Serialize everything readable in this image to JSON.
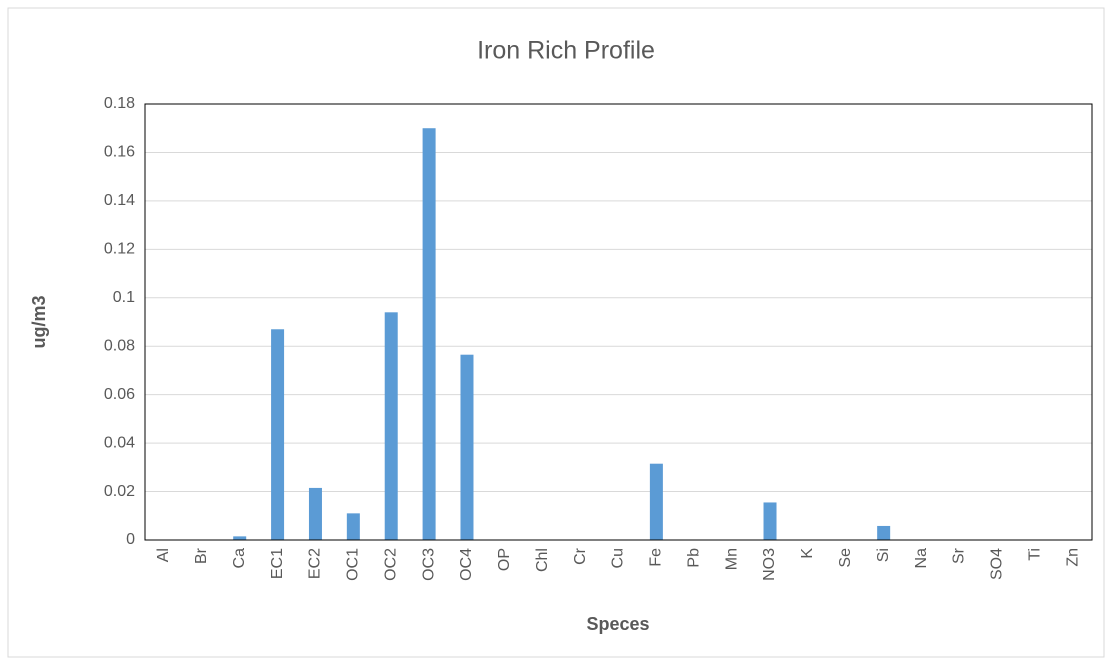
{
  "chart_data": {
    "type": "bar",
    "title": "Iron Rich Profile",
    "x_label": "Speces",
    "y_label": "ug/m3",
    "categories": [
      "Al",
      "Br",
      "Ca",
      "EC1",
      "EC2",
      "OC1",
      "OC2",
      "OC3",
      "OC4",
      "OP",
      "Chl",
      "Cr",
      "Cu",
      "Fe",
      "Pb",
      "Mn",
      "NO3",
      "K",
      "Se",
      "Si",
      "Na",
      "Sr",
      "SO4",
      "Ti",
      "Zn"
    ],
    "values": [
      0,
      0,
      0.0015,
      0.087,
      0.0215,
      0.011,
      0.094,
      0.17,
      0.0765,
      0,
      0,
      0,
      0,
      0.0315,
      0,
      0,
      0.0155,
      0,
      0,
      0.0058,
      0,
      0,
      0,
      0,
      0
    ],
    "color": "#5b9bd5",
    "ylim": [
      0,
      0.18
    ],
    "yticks": [
      0,
      0.02,
      0.04,
      0.06,
      0.08,
      0.1,
      0.12,
      0.14,
      0.16,
      0.18
    ],
    "grid": true
  }
}
